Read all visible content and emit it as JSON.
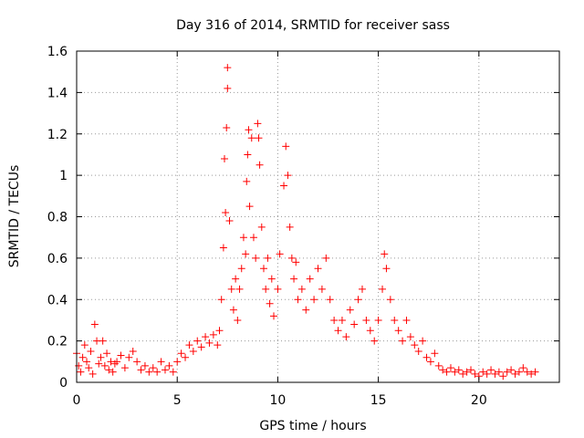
{
  "chart_data": {
    "type": "scatter",
    "title": "Day 316 of 2014, SRMTID for receiver sass",
    "xlabel": "GPS time / hours",
    "ylabel": "SRMTID / TECUs",
    "xlim": [
      0,
      24
    ],
    "ylim": [
      0,
      1.6
    ],
    "xticks": [
      0,
      5,
      10,
      15,
      20
    ],
    "xtick_labels": [
      "0",
      "5",
      "10",
      "15",
      "20"
    ],
    "yticks": [
      0,
      0.2,
      0.4,
      0.6,
      0.8,
      1.0,
      1.2,
      1.4,
      1.6
    ],
    "ytick_labels": [
      "0",
      "0.2",
      "0.4",
      "0.6",
      "0.8",
      "1",
      "1.2",
      "1.4",
      "1.6"
    ],
    "grid": true,
    "marker": "+",
    "marker_color": "#ff0000",
    "series": [
      {
        "name": "SRMTID",
        "points": [
          [
            0.0,
            0.14
          ],
          [
            0.1,
            0.08
          ],
          [
            0.2,
            0.05
          ],
          [
            0.3,
            0.12
          ],
          [
            0.4,
            0.18
          ],
          [
            0.5,
            0.1
          ],
          [
            0.6,
            0.07
          ],
          [
            0.7,
            0.15
          ],
          [
            0.8,
            0.04
          ],
          [
            0.9,
            0.28
          ],
          [
            1.0,
            0.2
          ],
          [
            1.1,
            0.09
          ],
          [
            1.2,
            0.12
          ],
          [
            1.3,
            0.2
          ],
          [
            1.4,
            0.08
          ],
          [
            1.5,
            0.14
          ],
          [
            1.6,
            0.06
          ],
          [
            1.7,
            0.1
          ],
          [
            1.8,
            0.05
          ],
          [
            1.9,
            0.09
          ],
          [
            2.0,
            0.1
          ],
          [
            2.2,
            0.13
          ],
          [
            2.4,
            0.07
          ],
          [
            2.6,
            0.12
          ],
          [
            2.8,
            0.15
          ],
          [
            3.0,
            0.1
          ],
          [
            3.2,
            0.06
          ],
          [
            3.4,
            0.08
          ],
          [
            3.6,
            0.05
          ],
          [
            3.8,
            0.07
          ],
          [
            4.0,
            0.05
          ],
          [
            4.2,
            0.1
          ],
          [
            4.4,
            0.06
          ],
          [
            4.6,
            0.08
          ],
          [
            4.8,
            0.05
          ],
          [
            5.0,
            0.1
          ],
          [
            5.2,
            0.14
          ],
          [
            5.4,
            0.12
          ],
          [
            5.6,
            0.18
          ],
          [
            5.8,
            0.15
          ],
          [
            6.0,
            0.2
          ],
          [
            6.2,
            0.17
          ],
          [
            6.4,
            0.22
          ],
          [
            6.6,
            0.19
          ],
          [
            6.8,
            0.23
          ],
          [
            7.0,
            0.18
          ],
          [
            7.1,
            0.25
          ],
          [
            7.2,
            0.4
          ],
          [
            7.3,
            0.65
          ],
          [
            7.35,
            1.08
          ],
          [
            7.4,
            0.82
          ],
          [
            7.45,
            1.23
          ],
          [
            7.5,
            1.42
          ],
          [
            7.5,
            1.52
          ],
          [
            7.6,
            0.78
          ],
          [
            7.7,
            0.45
          ],
          [
            7.8,
            0.35
          ],
          [
            7.9,
            0.5
          ],
          [
            8.0,
            0.3
          ],
          [
            8.1,
            0.45
          ],
          [
            8.2,
            0.55
          ],
          [
            8.3,
            0.7
          ],
          [
            8.4,
            0.62
          ],
          [
            8.45,
            0.97
          ],
          [
            8.5,
            1.1
          ],
          [
            8.55,
            1.22
          ],
          [
            8.6,
            0.85
          ],
          [
            8.7,
            1.18
          ],
          [
            8.8,
            0.7
          ],
          [
            8.9,
            0.6
          ],
          [
            9.0,
            1.25
          ],
          [
            9.05,
            1.18
          ],
          [
            9.1,
            1.05
          ],
          [
            9.2,
            0.75
          ],
          [
            9.3,
            0.55
          ],
          [
            9.4,
            0.45
          ],
          [
            9.5,
            0.6
          ],
          [
            9.6,
            0.38
          ],
          [
            9.7,
            0.5
          ],
          [
            9.8,
            0.32
          ],
          [
            10.0,
            0.45
          ],
          [
            10.1,
            0.62
          ],
          [
            10.3,
            0.95
          ],
          [
            10.4,
            1.14
          ],
          [
            10.5,
            1.0
          ],
          [
            10.6,
            0.75
          ],
          [
            10.7,
            0.6
          ],
          [
            10.8,
            0.5
          ],
          [
            10.9,
            0.58
          ],
          [
            11.0,
            0.4
          ],
          [
            11.2,
            0.45
          ],
          [
            11.4,
            0.35
          ],
          [
            11.6,
            0.5
          ],
          [
            11.8,
            0.4
          ],
          [
            12.0,
            0.55
          ],
          [
            12.2,
            0.45
          ],
          [
            12.4,
            0.6
          ],
          [
            12.6,
            0.4
          ],
          [
            12.8,
            0.3
          ],
          [
            13.0,
            0.25
          ],
          [
            13.2,
            0.3
          ],
          [
            13.4,
            0.22
          ],
          [
            13.6,
            0.35
          ],
          [
            13.8,
            0.28
          ],
          [
            14.0,
            0.4
          ],
          [
            14.2,
            0.45
          ],
          [
            14.4,
            0.3
          ],
          [
            14.6,
            0.25
          ],
          [
            14.8,
            0.2
          ],
          [
            15.0,
            0.3
          ],
          [
            15.2,
            0.45
          ],
          [
            15.3,
            0.62
          ],
          [
            15.4,
            0.55
          ],
          [
            15.6,
            0.4
          ],
          [
            15.8,
            0.3
          ],
          [
            16.0,
            0.25
          ],
          [
            16.2,
            0.2
          ],
          [
            16.4,
            0.3
          ],
          [
            16.6,
            0.22
          ],
          [
            16.8,
            0.18
          ],
          [
            17.0,
            0.15
          ],
          [
            17.2,
            0.2
          ],
          [
            17.4,
            0.12
          ],
          [
            17.6,
            0.1
          ],
          [
            17.8,
            0.14
          ],
          [
            18.0,
            0.08
          ],
          [
            18.2,
            0.06
          ],
          [
            18.4,
            0.05
          ],
          [
            18.6,
            0.07
          ],
          [
            18.8,
            0.05
          ],
          [
            19.0,
            0.06
          ],
          [
            19.2,
            0.04
          ],
          [
            19.4,
            0.05
          ],
          [
            19.6,
            0.06
          ],
          [
            19.8,
            0.04
          ],
          [
            20.0,
            0.03
          ],
          [
            20.2,
            0.05
          ],
          [
            20.4,
            0.04
          ],
          [
            20.6,
            0.06
          ],
          [
            20.8,
            0.04
          ],
          [
            21.0,
            0.05
          ],
          [
            21.2,
            0.03
          ],
          [
            21.4,
            0.05
          ],
          [
            21.6,
            0.06
          ],
          [
            21.8,
            0.04
          ],
          [
            22.0,
            0.05
          ],
          [
            22.2,
            0.07
          ],
          [
            22.4,
            0.05
          ],
          [
            22.6,
            0.04
          ],
          [
            22.8,
            0.05
          ]
        ]
      }
    ]
  }
}
